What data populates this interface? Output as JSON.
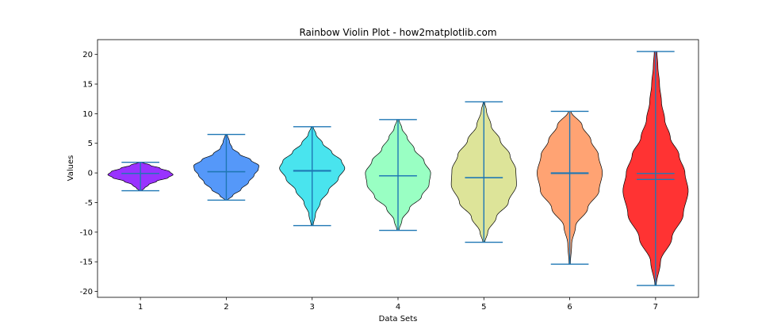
{
  "chart_data": {
    "type": "violin",
    "title": "Rainbow Violin Plot - how2matplotlib.com",
    "xlabel": "Data Sets",
    "ylabel": "Values",
    "categories": [
      "1",
      "2",
      "3",
      "4",
      "5",
      "6",
      "7"
    ],
    "ylim": [
      -21,
      22.5
    ],
    "yticks": [
      -20,
      -15,
      -10,
      -5,
      0,
      5,
      10,
      15,
      20
    ],
    "grid": false,
    "series": [
      {
        "category": "1",
        "color": "#8000ff",
        "min": -3.0,
        "max": 1.8,
        "mean": -0.1,
        "median": -0.1,
        "mode": -0.3,
        "spread": 0.9,
        "shape": [
          [
            -3.0,
            0.03
          ],
          [
            -2.6,
            0.12
          ],
          [
            -2.0,
            0.25
          ],
          [
            -1.4,
            0.5
          ],
          [
            -0.8,
            0.85
          ],
          [
            -0.3,
            1.0
          ],
          [
            0.2,
            0.9
          ],
          [
            0.8,
            0.6
          ],
          [
            1.3,
            0.3
          ],
          [
            1.8,
            0.04
          ]
        ]
      },
      {
        "category": "2",
        "color": "#2a7ef8",
        "min": -4.6,
        "max": 6.5,
        "mean": 0.2,
        "median": 0.2,
        "mode": 1.2,
        "spread": 1.8,
        "shape": [
          [
            -4.6,
            0.04
          ],
          [
            -3.8,
            0.2
          ],
          [
            -2.8,
            0.45
          ],
          [
            -1.6,
            0.68
          ],
          [
            -0.4,
            0.85
          ],
          [
            0.6,
            0.98
          ],
          [
            1.2,
            1.0
          ],
          [
            2.2,
            0.75
          ],
          [
            3.2,
            0.4
          ],
          [
            4.2,
            0.18
          ],
          [
            5.2,
            0.1
          ],
          [
            6.5,
            0.03
          ]
        ]
      },
      {
        "category": "3",
        "color": "#1cddea",
        "min": -8.9,
        "max": 7.8,
        "mean": 0.3,
        "median": 0.4,
        "mode": 0.8,
        "spread": 3.6,
        "shape": [
          [
            -8.9,
            0.03
          ],
          [
            -7.0,
            0.1
          ],
          [
            -5.0,
            0.25
          ],
          [
            -3.0,
            0.5
          ],
          [
            -1.0,
            0.8
          ],
          [
            0.8,
            1.0
          ],
          [
            2.0,
            0.9
          ],
          [
            3.5,
            0.6
          ],
          [
            5.0,
            0.32
          ],
          [
            6.5,
            0.12
          ],
          [
            7.8,
            0.03
          ]
        ]
      },
      {
        "category": "4",
        "color": "#80ffb4",
        "min": -9.7,
        "max": 9.0,
        "mean": -0.5,
        "median": -0.5,
        "mode": 0.0,
        "spread": 4.4,
        "shape": [
          [
            -9.7,
            0.03
          ],
          [
            -8.0,
            0.12
          ],
          [
            -6.0,
            0.35
          ],
          [
            -4.0,
            0.72
          ],
          [
            -2.0,
            0.95
          ],
          [
            0.0,
            1.0
          ],
          [
            2.0,
            0.8
          ],
          [
            4.0,
            0.5
          ],
          [
            6.0,
            0.28
          ],
          [
            7.5,
            0.12
          ],
          [
            9.0,
            0.03
          ]
        ]
      },
      {
        "category": "5",
        "color": "#d4dd80",
        "min": -11.7,
        "max": 12.0,
        "mean": -0.8,
        "median": -0.8,
        "mode": 0.0,
        "spread": 5.8,
        "shape": [
          [
            -11.7,
            0.03
          ],
          [
            -10.0,
            0.12
          ],
          [
            -7.5,
            0.38
          ],
          [
            -5.0,
            0.75
          ],
          [
            -2.0,
            1.0
          ],
          [
            0.5,
            0.98
          ],
          [
            3.0,
            0.8
          ],
          [
            5.5,
            0.5
          ],
          [
            8.0,
            0.22
          ],
          [
            10.5,
            0.08
          ],
          [
            12.0,
            0.02
          ]
        ]
      },
      {
        "category": "6",
        "color": "#ff8c50",
        "min": -15.4,
        "max": 10.4,
        "mean": 0.0,
        "median": -0.1,
        "mode": 0.0,
        "spread": 7.0,
        "shape": [
          [
            -15.4,
            0.02
          ],
          [
            -12.0,
            0.06
          ],
          [
            -9.0,
            0.18
          ],
          [
            -6.0,
            0.55
          ],
          [
            -3.0,
            0.9
          ],
          [
            0.0,
            1.0
          ],
          [
            3.0,
            0.88
          ],
          [
            5.5,
            0.65
          ],
          [
            8.0,
            0.38
          ],
          [
            10.4,
            0.04
          ]
        ]
      },
      {
        "category": "7",
        "color": "#ff0000",
        "min": -19.0,
        "max": 20.5,
        "mean": -1.1,
        "median": -0.1,
        "mode": -2.0,
        "spread": 7.8,
        "shape": [
          [
            -19.0,
            0.02
          ],
          [
            -15.0,
            0.15
          ],
          [
            -11.0,
            0.5
          ],
          [
            -7.0,
            0.85
          ],
          [
            -3.0,
            1.0
          ],
          [
            0.0,
            0.9
          ],
          [
            3.0,
            0.72
          ],
          [
            6.0,
            0.45
          ],
          [
            9.0,
            0.28
          ],
          [
            12.0,
            0.18
          ],
          [
            15.0,
            0.12
          ],
          [
            18.0,
            0.07
          ],
          [
            20.5,
            0.04
          ]
        ]
      }
    ]
  }
}
